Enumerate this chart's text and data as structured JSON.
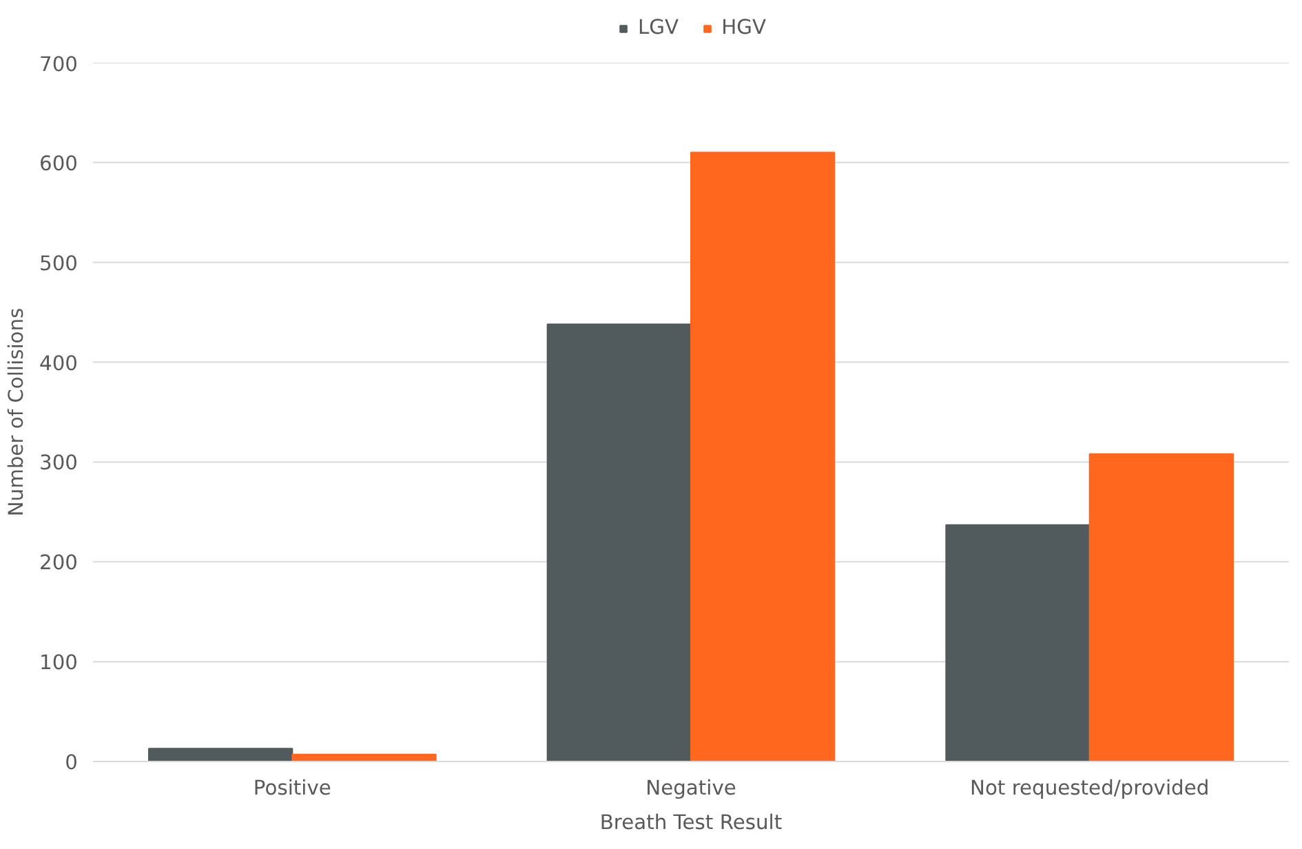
{
  "chart_data": {
    "type": "bar",
    "xlabel": "Breath Test Result",
    "ylabel": "Number of Collisions",
    "categories": [
      "Positive",
      "Negative",
      "Not requested/provided"
    ],
    "series": [
      {
        "name": "LGV",
        "color": "#515a5c",
        "values": [
          13,
          438,
          237
        ]
      },
      {
        "name": "HGV",
        "color": "#ff671f",
        "values": [
          7,
          610,
          308
        ]
      }
    ],
    "ylim": [
      0,
      700
    ],
    "yticks": [
      0,
      100,
      200,
      300,
      400,
      500,
      600,
      700
    ],
    "grid": "y",
    "legend": "top"
  }
}
